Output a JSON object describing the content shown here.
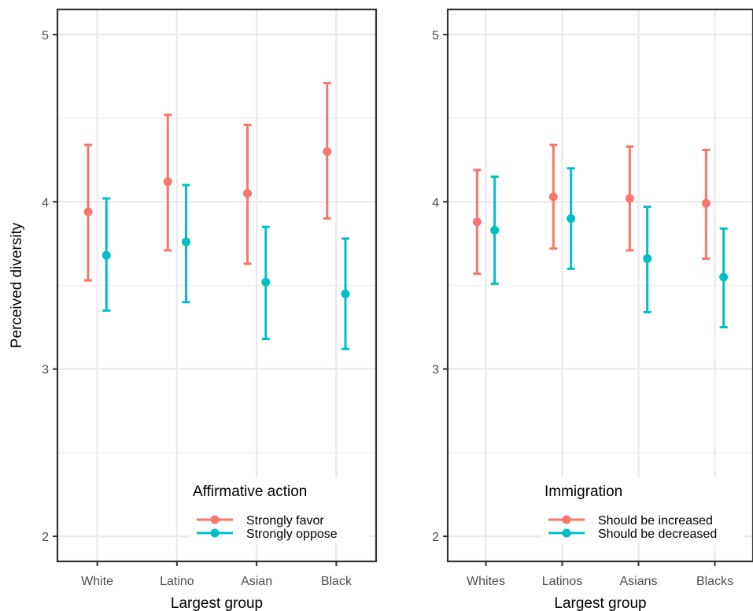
{
  "chart_data": [
    {
      "type": "errorbar",
      "ylabel": "Perceived diversity",
      "xlabel": "Largest group",
      "ylim": [
        1.85,
        5.15
      ],
      "yticks": [
        2,
        3,
        4,
        5
      ],
      "ytick_labels": [
        "2",
        "3",
        "4",
        "5"
      ],
      "categories": [
        "White",
        "Latino",
        "Asian",
        "Black"
      ],
      "grid": true,
      "legend": {
        "title": "Affirmative action",
        "placement": "bottom-right"
      },
      "series": [
        {
          "name": "Strongly favor",
          "color": "#F8766D",
          "values": [
            3.94,
            4.12,
            4.05,
            4.3
          ],
          "lower": [
            3.53,
            3.71,
            3.63,
            3.9
          ],
          "upper": [
            4.34,
            4.52,
            4.46,
            4.71
          ]
        },
        {
          "name": "Strongly oppose",
          "color": "#00BFC4",
          "values": [
            3.68,
            3.76,
            3.52,
            3.45
          ],
          "lower": [
            3.35,
            3.4,
            3.18,
            3.12
          ],
          "upper": [
            4.02,
            4.1,
            3.85,
            3.78
          ]
        }
      ]
    },
    {
      "type": "errorbar",
      "ylabel": "",
      "xlabel": "Largest group",
      "ylim": [
        1.85,
        5.15
      ],
      "yticks": [
        2,
        3,
        4,
        5
      ],
      "ytick_labels": [
        "2",
        "3",
        "4",
        "5"
      ],
      "categories": [
        "Whites",
        "Latinos",
        "Asians",
        "Blacks"
      ],
      "grid": true,
      "legend": {
        "title": "Immigration",
        "placement": "bottom-right"
      },
      "series": [
        {
          "name": "Should be increased",
          "color": "#F8766D",
          "values": [
            3.88,
            4.03,
            4.02,
            3.99
          ],
          "lower": [
            3.57,
            3.72,
            3.71,
            3.66
          ],
          "upper": [
            4.19,
            4.34,
            4.33,
            4.31
          ]
        },
        {
          "name": "Should be decreased",
          "color": "#00BFC4",
          "values": [
            3.83,
            3.9,
            3.66,
            3.55
          ],
          "lower": [
            3.51,
            3.6,
            3.34,
            3.25
          ],
          "upper": [
            4.15,
            4.2,
            3.97,
            3.84
          ]
        }
      ]
    }
  ]
}
